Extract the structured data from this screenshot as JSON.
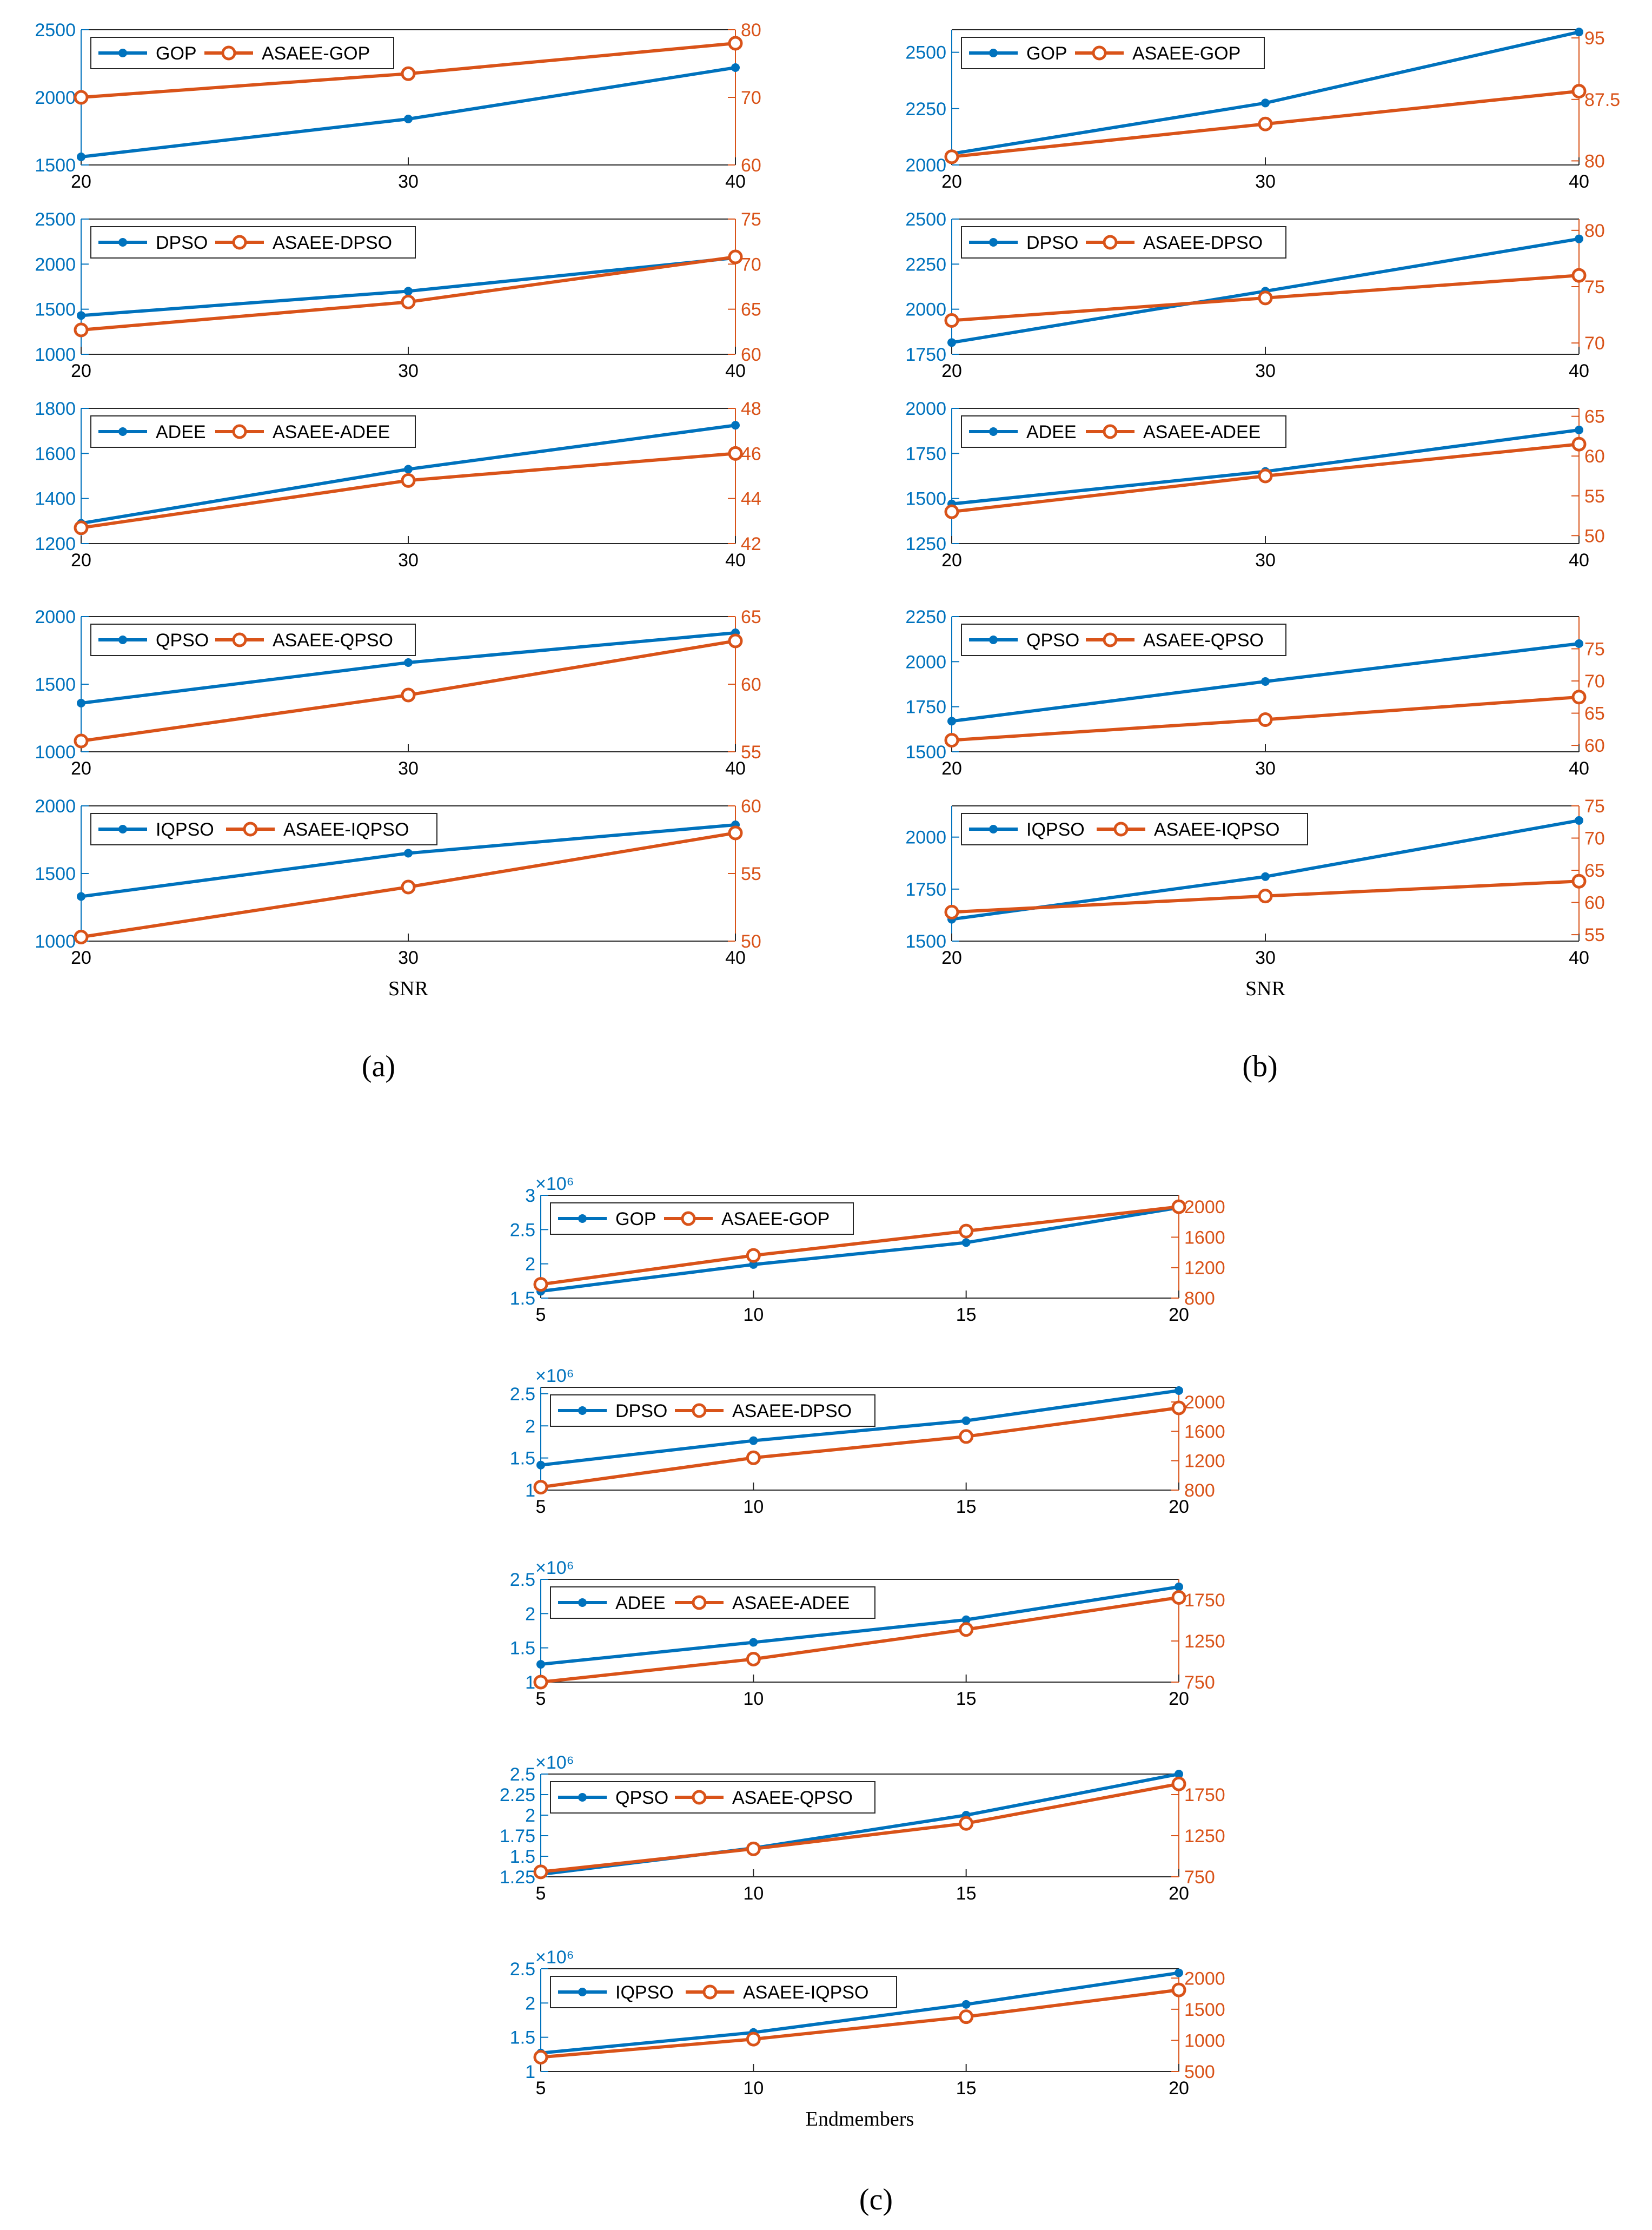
{
  "colors": {
    "blue": "#0072BD",
    "orange": "#D95319",
    "frame": "#262626",
    "left_axis": "#0072BD",
    "right_axis": "#D95319"
  },
  "panels": [
    {
      "label": "(a)",
      "xlabel": "SNR"
    },
    {
      "label": "(b)",
      "xlabel": "SNR"
    },
    {
      "label": "(c)",
      "xlabel": "Endmembers"
    }
  ],
  "chart_data": [
    {
      "type": "line",
      "panel": "a",
      "row": 1,
      "x": [
        20,
        30,
        40
      ],
      "xticks": [
        "20",
        "30",
        "40"
      ],
      "xlim": [
        20,
        40
      ],
      "series": [
        {
          "name": "GOP",
          "axis": "left",
          "values": [
            1560,
            1840,
            2220
          ]
        },
        {
          "name": "ASAEE-GOP",
          "axis": "right",
          "values": [
            70,
            73.5,
            78
          ]
        }
      ],
      "ylim_left": [
        1500,
        2500
      ],
      "yticks_left": [
        "1500",
        "2000",
        "2500"
      ],
      "ylim_right": [
        60,
        80
      ],
      "yticks_right": [
        "60",
        "70",
        "80"
      ],
      "left_exp": "",
      "xlabel": ""
    },
    {
      "type": "line",
      "panel": "a",
      "row": 2,
      "x": [
        20,
        30,
        40
      ],
      "xticks": [
        "20",
        "30",
        "40"
      ],
      "xlim": [
        20,
        40
      ],
      "series": [
        {
          "name": "DPSO",
          "axis": "left",
          "values": [
            1430,
            1700,
            2070
          ]
        },
        {
          "name": "ASAEE-DPSO",
          "axis": "right",
          "values": [
            62.7,
            65.8,
            70.8
          ]
        }
      ],
      "ylim_left": [
        1000,
        2500
      ],
      "yticks_left": [
        "1000",
        "1500",
        "2000",
        "2500"
      ],
      "ylim_right": [
        60,
        75
      ],
      "yticks_right": [
        "60",
        "65",
        "70",
        "75"
      ],
      "left_exp": "",
      "xlabel": ""
    },
    {
      "type": "line",
      "panel": "a",
      "row": 3,
      "x": [
        20,
        30,
        40
      ],
      "xticks": [
        "20",
        "30",
        "40"
      ],
      "xlim": [
        20,
        40
      ],
      "series": [
        {
          "name": "ADEE",
          "axis": "left",
          "values": [
            1290,
            1530,
            1725
          ]
        },
        {
          "name": "ASAEE-ADEE",
          "axis": "right",
          "values": [
            42.7,
            44.8,
            46.0
          ]
        }
      ],
      "ylim_left": [
        1200,
        1800
      ],
      "yticks_left": [
        "1200",
        "1400",
        "1600",
        "1800"
      ],
      "ylim_right": [
        42,
        48
      ],
      "yticks_right": [
        "42",
        "44",
        "46",
        "48"
      ],
      "left_exp": "",
      "xlabel": ""
    },
    {
      "type": "line",
      "panel": "a",
      "row": 4,
      "x": [
        20,
        30,
        40
      ],
      "xticks": [
        "20",
        "30",
        "40"
      ],
      "xlim": [
        20,
        40
      ],
      "series": [
        {
          "name": "QPSO",
          "axis": "left",
          "values": [
            1360,
            1660,
            1880
          ]
        },
        {
          "name": "ASAEE-QPSO",
          "axis": "right",
          "values": [
            55.8,
            59.2,
            63.2
          ]
        }
      ],
      "ylim_left": [
        1000,
        2000
      ],
      "yticks_left": [
        "1000",
        "1500",
        "2000"
      ],
      "ylim_right": [
        55,
        65
      ],
      "yticks_right": [
        "55",
        "60",
        "65"
      ],
      "left_exp": "",
      "xlabel": ""
    },
    {
      "type": "line",
      "panel": "a",
      "row": 5,
      "x": [
        20,
        30,
        40
      ],
      "xticks": [
        "20",
        "30",
        "40"
      ],
      "xlim": [
        20,
        40
      ],
      "series": [
        {
          "name": "IQPSO",
          "axis": "left",
          "values": [
            1330,
            1650,
            1860
          ]
        },
        {
          "name": "ASAEE-IQPSO",
          "axis": "right",
          "values": [
            50.3,
            54.0,
            58.0
          ]
        }
      ],
      "ylim_left": [
        1000,
        2000
      ],
      "yticks_left": [
        "1000",
        "1500",
        "2000"
      ],
      "ylim_right": [
        50,
        60
      ],
      "yticks_right": [
        "50",
        "55",
        "60"
      ],
      "left_exp": "",
      "xlabel": "SNR"
    },
    {
      "type": "line",
      "panel": "b",
      "row": 1,
      "x": [
        20,
        30,
        40
      ],
      "xticks": [
        "20",
        "30",
        "40"
      ],
      "xlim": [
        20,
        40
      ],
      "series": [
        {
          "name": "GOP",
          "axis": "left",
          "values": [
            2050,
            2275,
            2590
          ]
        },
        {
          "name": "ASAEE-GOP",
          "axis": "right",
          "values": [
            80.5,
            84.5,
            88.5
          ]
        }
      ],
      "ylim_left": [
        2000,
        2600
      ],
      "yticks_left": [
        "2000",
        "2250",
        "2500"
      ],
      "ylim_right": [
        79.5,
        96
      ],
      "yticks_right": [
        "80",
        "87.5",
        "95"
      ],
      "left_exp": "",
      "xlabel": ""
    },
    {
      "type": "line",
      "panel": "b",
      "row": 2,
      "x": [
        20,
        30,
        40
      ],
      "xticks": [
        "20",
        "30",
        "40"
      ],
      "xlim": [
        20,
        40
      ],
      "series": [
        {
          "name": "DPSO",
          "axis": "left",
          "values": [
            1815,
            2100,
            2390
          ]
        },
        {
          "name": "ASAEE-DPSO",
          "axis": "right",
          "values": [
            72.0,
            74.0,
            76.0
          ]
        }
      ],
      "ylim_left": [
        1750,
        2500
      ],
      "yticks_left": [
        "1750",
        "2000",
        "2250",
        "2500"
      ],
      "ylim_right": [
        69,
        81
      ],
      "yticks_right": [
        "70",
        "75",
        "80"
      ],
      "left_exp": "",
      "xlabel": ""
    },
    {
      "type": "line",
      "panel": "b",
      "row": 3,
      "x": [
        20,
        30,
        40
      ],
      "xticks": [
        "20",
        "30",
        "40"
      ],
      "xlim": [
        20,
        40
      ],
      "series": [
        {
          "name": "ADEE",
          "axis": "left",
          "values": [
            1470,
            1650,
            1880
          ]
        },
        {
          "name": "ASAEE-ADEE",
          "axis": "right",
          "values": [
            53.0,
            57.5,
            61.5
          ]
        }
      ],
      "ylim_left": [
        1250,
        2000
      ],
      "yticks_left": [
        "1250",
        "1500",
        "1750",
        "2000"
      ],
      "ylim_right": [
        49,
        66
      ],
      "yticks_right": [
        "50",
        "55",
        "60",
        "65"
      ],
      "left_exp": "",
      "xlabel": ""
    },
    {
      "type": "line",
      "panel": "b",
      "row": 4,
      "x": [
        20,
        30,
        40
      ],
      "xticks": [
        "20",
        "30",
        "40"
      ],
      "xlim": [
        20,
        40
      ],
      "series": [
        {
          "name": "QPSO",
          "axis": "left",
          "values": [
            1670,
            1890,
            2100
          ]
        },
        {
          "name": "ASAEE-QPSO",
          "axis": "right",
          "values": [
            60.8,
            64.0,
            67.5
          ]
        }
      ],
      "ylim_left": [
        1500,
        2250
      ],
      "yticks_left": [
        "1500",
        "1750",
        "2000",
        "2250"
      ],
      "ylim_right": [
        59,
        80
      ],
      "yticks_right": [
        "60",
        "65",
        "70",
        "75"
      ],
      "left_exp": "",
      "xlabel": ""
    },
    {
      "type": "line",
      "panel": "b",
      "row": 5,
      "x": [
        20,
        30,
        40
      ],
      "xticks": [
        "20",
        "30",
        "40"
      ],
      "xlim": [
        20,
        40
      ],
      "series": [
        {
          "name": "IQPSO",
          "axis": "left",
          "values": [
            1605,
            1810,
            2080
          ]
        },
        {
          "name": "ASAEE-IQPSO",
          "axis": "right",
          "values": [
            58.5,
            61.0,
            63.3
          ]
        }
      ],
      "ylim_left": [
        1500,
        2150
      ],
      "yticks_left": [
        "1500",
        "1750",
        "2000"
      ],
      "ylim_right": [
        54,
        75
      ],
      "yticks_right": [
        "55",
        "60",
        "65",
        "70",
        "75"
      ],
      "left_exp": "",
      "xlabel": "SNR"
    },
    {
      "type": "line",
      "panel": "c",
      "row": 1,
      "x": [
        5,
        10,
        15,
        20
      ],
      "xticks": [
        "5",
        "10",
        "15",
        "20"
      ],
      "xlim": [
        5,
        20
      ],
      "series": [
        {
          "name": "GOP",
          "axis": "left",
          "values": [
            1.6,
            1.99,
            2.31,
            2.82
          ]
        },
        {
          "name": "ASAEE-GOP",
          "axis": "right",
          "values": [
            980,
            1360,
            1680,
            2000
          ]
        }
      ],
      "ylim_left": [
        1.5,
        3.0
      ],
      "yticks_left": [
        "1.5",
        "2",
        "2.5",
        "3"
      ],
      "ylim_right": [
        800,
        2150
      ],
      "yticks_right": [
        "800",
        "1200",
        "1600",
        "2000"
      ],
      "left_exp": "×10⁶",
      "xlabel": ""
    },
    {
      "type": "line",
      "panel": "c",
      "row": 2,
      "x": [
        5,
        10,
        15,
        20
      ],
      "xticks": [
        "5",
        "10",
        "15",
        "20"
      ],
      "xlim": [
        5,
        20
      ],
      "series": [
        {
          "name": "DPSO",
          "axis": "left",
          "values": [
            1.39,
            1.77,
            2.08,
            2.55
          ]
        },
        {
          "name": "ASAEE-DPSO",
          "axis": "right",
          "values": [
            840,
            1240,
            1530,
            1920
          ]
        }
      ],
      "ylim_left": [
        1.0,
        2.6
      ],
      "yticks_left": [
        "1",
        "1.5",
        "2",
        "2.5"
      ],
      "ylim_right": [
        800,
        2200
      ],
      "yticks_right": [
        "800",
        "1200",
        "1600",
        "2000"
      ],
      "left_exp": "×10⁶",
      "xlabel": ""
    },
    {
      "type": "line",
      "panel": "c",
      "row": 3,
      "x": [
        5,
        10,
        15,
        20
      ],
      "xticks": [
        "5",
        "10",
        "15",
        "20"
      ],
      "xlim": [
        5,
        20
      ],
      "series": [
        {
          "name": "ADEE",
          "axis": "left",
          "values": [
            1.26,
            1.58,
            1.91,
            2.39
          ]
        },
        {
          "name": "ASAEE-ADEE",
          "axis": "right",
          "values": [
            750,
            1030,
            1390,
            1780
          ]
        }
      ],
      "ylim_left": [
        1.0,
        2.5
      ],
      "yticks_left": [
        "1",
        "1.5",
        "2",
        "2.5"
      ],
      "ylim_right": [
        750,
        2000
      ],
      "yticks_right": [
        "750",
        "1250",
        "1750"
      ],
      "left_exp": "×10⁶",
      "xlabel": ""
    },
    {
      "type": "line",
      "panel": "c",
      "row": 4,
      "x": [
        5,
        10,
        15,
        20
      ],
      "xticks": [
        "5",
        "10",
        "15",
        "20"
      ],
      "xlim": [
        5,
        20
      ],
      "series": [
        {
          "name": "QPSO",
          "axis": "left",
          "values": [
            1.28,
            1.6,
            2.0,
            2.5
          ]
        },
        {
          "name": "ASAEE-QPSO",
          "axis": "right",
          "values": [
            810,
            1090,
            1400,
            1880
          ]
        }
      ],
      "ylim_left": [
        1.25,
        2.5
      ],
      "yticks_left": [
        "1.25",
        "1.5",
        "1.75",
        "2",
        "2.25",
        "2.5"
      ],
      "ylim_right": [
        750,
        2000
      ],
      "yticks_right": [
        "750",
        "1250",
        "1750"
      ],
      "left_exp": "×10⁶",
      "xlabel": ""
    },
    {
      "type": "line",
      "panel": "c",
      "row": 5,
      "x": [
        5,
        10,
        15,
        20
      ],
      "xticks": [
        "5",
        "10",
        "15",
        "20"
      ],
      "xlim": [
        5,
        20
      ],
      "series": [
        {
          "name": "IQPSO",
          "axis": "left",
          "values": [
            1.27,
            1.57,
            1.98,
            2.44
          ]
        },
        {
          "name": "ASAEE-IQPSO",
          "axis": "right",
          "values": [
            730,
            1020,
            1380,
            1810
          ]
        }
      ],
      "ylim_left": [
        1.0,
        2.5
      ],
      "yticks_left": [
        "1",
        "1.5",
        "2",
        "2.5"
      ],
      "ylim_right": [
        500,
        2150
      ],
      "yticks_right": [
        "500",
        "1000",
        "1500",
        "2000"
      ],
      "left_exp": "×10⁶",
      "xlabel": "Endmembers"
    }
  ]
}
